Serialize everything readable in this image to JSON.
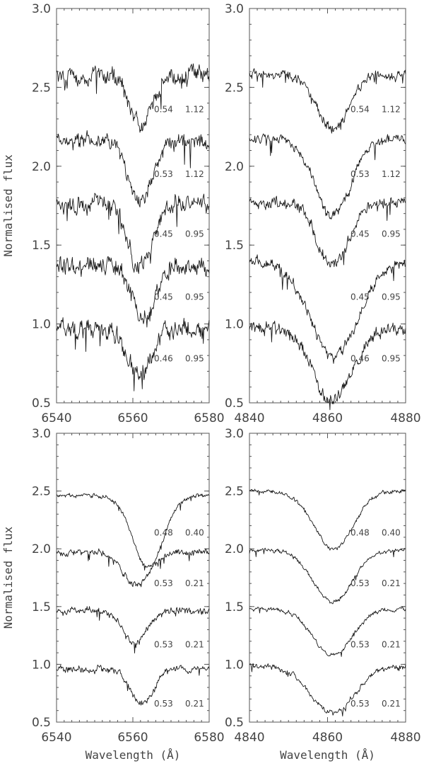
{
  "chart_data": [
    {
      "type": "line",
      "xlim": [
        6540,
        6580
      ],
      "ylim": [
        0.5,
        3.0
      ],
      "xticks": [
        "6540",
        "6560",
        "6580"
      ],
      "yticks": [
        "0.5",
        "1.0",
        "1.5",
        "2.0",
        "2.5",
        "3.0"
      ],
      "ylabel": "Normalised flux",
      "xlabel": "",
      "series": [
        {
          "continuum": 2.57,
          "center": 6562.3,
          "depth": 0.32,
          "width": 2.8,
          "noise": 0.045,
          "labels": [
            "0.54",
            "1.12"
          ],
          "label_y": 2.36
        },
        {
          "continuum": 2.16,
          "center": 6562.0,
          "depth": 0.38,
          "width": 3.0,
          "noise": 0.045,
          "labels": [
            "0.53",
            "1.12"
          ],
          "label_y": 1.95
        },
        {
          "continuum": 1.76,
          "center": 6561.8,
          "depth": 0.4,
          "width": 3.2,
          "noise": 0.05,
          "labels": [
            "0.45",
            "0.95"
          ],
          "label_y": 1.57
        },
        {
          "continuum": 1.37,
          "center": 6563.0,
          "depth": 0.35,
          "width": 3.0,
          "noise": 0.05,
          "labels": [
            "0.45",
            "0.95"
          ],
          "label_y": 1.17
        },
        {
          "continuum": 0.97,
          "center": 6561.8,
          "depth": 0.29,
          "width": 3.2,
          "noise": 0.05,
          "labels": [
            "0.46",
            "0.95"
          ],
          "label_y": 0.78
        }
      ]
    },
    {
      "type": "line",
      "xlim": [
        4840,
        4880
      ],
      "ylim": [
        0.5,
        3.0
      ],
      "xticks": [
        "4840",
        "4860",
        "4880"
      ],
      "yticks": [
        "0.5",
        "1.0",
        "1.5",
        "2.0",
        "2.5",
        "3.0"
      ],
      "ylabel": "",
      "xlabel": "",
      "series": [
        {
          "continuum": 2.58,
          "center": 4861.3,
          "depth": 0.35,
          "width": 4.0,
          "noise": 0.025,
          "labels": [
            "0.54",
            "1.12"
          ],
          "label_y": 2.36
        },
        {
          "continuum": 2.17,
          "center": 4861.3,
          "depth": 0.48,
          "width": 4.5,
          "noise": 0.025,
          "labels": [
            "0.53",
            "1.12"
          ],
          "label_y": 1.95
        },
        {
          "continuum": 1.77,
          "center": 4861.3,
          "depth": 0.4,
          "width": 4.0,
          "noise": 0.03,
          "labels": [
            "0.45",
            "0.95"
          ],
          "label_y": 1.57
        },
        {
          "continuum": 1.39,
          "center": 4861.8,
          "depth": 0.6,
          "width": 6.0,
          "noise": 0.03,
          "labels": [
            "0.45",
            "0.95"
          ],
          "label_y": 1.17
        },
        {
          "continuum": 0.97,
          "center": 4861.3,
          "depth": 0.45,
          "width": 5.0,
          "noise": 0.035,
          "labels": [
            "0.46",
            "0.95"
          ],
          "label_y": 0.78
        }
      ]
    },
    {
      "type": "line",
      "xlim": [
        6540,
        6580
      ],
      "ylim": [
        0.5,
        3.0
      ],
      "xticks": [
        "6540",
        "6560",
        "6580"
      ],
      "yticks": [
        "0.5",
        "1.0",
        "1.5",
        "2.0",
        "2.5",
        "3.0"
      ],
      "ylabel": "Normalised flux",
      "xlabel": "Wavelength (Å)",
      "series": [
        {
          "continuum": 2.46,
          "center": 6564.0,
          "depth": 0.62,
          "width": 4.0,
          "noise": 0.015,
          "labels": [
            "0.48",
            "0.40"
          ],
          "label_y": 2.14
        },
        {
          "continuum": 1.97,
          "center": 6560.8,
          "depth": 0.28,
          "width": 3.5,
          "noise": 0.025,
          "labels": [
            "0.53",
            "0.21"
          ],
          "label_y": 1.7
        },
        {
          "continuum": 1.46,
          "center": 6560.6,
          "depth": 0.28,
          "width": 3.0,
          "noise": 0.025,
          "labels": [
            "0.53",
            "0.21"
          ],
          "label_y": 1.17
        },
        {
          "continuum": 0.96,
          "center": 6562.5,
          "depth": 0.3,
          "width": 3.0,
          "noise": 0.025,
          "labels": [
            "0.53",
            "0.21"
          ],
          "label_y": 0.66
        }
      ]
    },
    {
      "type": "line",
      "xlim": [
        4840,
        4880
      ],
      "ylim": [
        0.5,
        3.0
      ],
      "xticks": [
        "4840",
        "4860",
        "4880"
      ],
      "yticks": [
        "0.5",
        "1.0",
        "1.5",
        "2.0",
        "2.5",
        "3.0"
      ],
      "ylabel": "",
      "xlabel": "Wavelength (Å)",
      "series": [
        {
          "continuum": 2.5,
          "center": 4861.5,
          "depth": 0.5,
          "width": 5.0,
          "noise": 0.015,
          "labels": [
            "0.48",
            "0.40"
          ],
          "label_y": 2.14
        },
        {
          "continuum": 1.99,
          "center": 4861.3,
          "depth": 0.45,
          "width": 5.0,
          "noise": 0.015,
          "labels": [
            "0.53",
            "0.21"
          ],
          "label_y": 1.7
        },
        {
          "continuum": 1.48,
          "center": 4861.3,
          "depth": 0.4,
          "width": 5.0,
          "noise": 0.015,
          "labels": [
            "0.53",
            "0.21"
          ],
          "label_y": 1.17
        },
        {
          "continuum": 0.98,
          "center": 4861.3,
          "depth": 0.4,
          "width": 5.5,
          "noise": 0.02,
          "labels": [
            "0.53",
            "0.21"
          ],
          "label_y": 0.66
        }
      ]
    }
  ]
}
